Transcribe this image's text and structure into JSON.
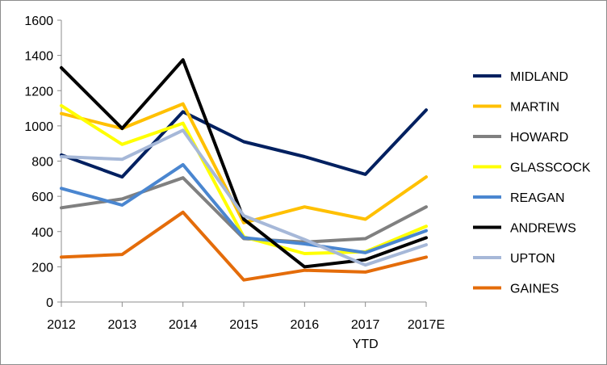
{
  "chart_data": {
    "type": "line",
    "title": "",
    "xlabel": "",
    "ylabel": "",
    "categories": [
      "2012",
      "2013",
      "2014",
      "2015",
      "2016",
      "2017",
      "2017E"
    ],
    "category_sublabels": [
      "",
      "",
      "",
      "",
      "",
      "YTD",
      ""
    ],
    "ylim": [
      0,
      1600
    ],
    "yticks": [
      0,
      200,
      400,
      600,
      800,
      1000,
      1200,
      1400,
      1600
    ],
    "grid": false,
    "legend_position": "right",
    "series": [
      {
        "name": "MIDLAND",
        "color": "#002060",
        "values": [
          835,
          710,
          1080,
          910,
          825,
          725,
          1090
        ]
      },
      {
        "name": "MARTIN",
        "color": "#FFC000",
        "values": [
          1070,
          985,
          1125,
          450,
          540,
          470,
          710
        ]
      },
      {
        "name": "HOWARD",
        "color": "#808080",
        "values": [
          535,
          585,
          705,
          360,
          340,
          360,
          540
        ]
      },
      {
        "name": "GLASSCOCK",
        "color": "#FFFF00",
        "values": [
          1115,
          895,
          1015,
          370,
          275,
          285,
          430
        ]
      },
      {
        "name": "REAGAN",
        "color": "#4A86D0",
        "values": [
          645,
          550,
          780,
          365,
          330,
          280,
          405
        ]
      },
      {
        "name": "ANDREWS",
        "color": "#000000",
        "values": [
          1330,
          985,
          1375,
          470,
          200,
          240,
          365
        ]
      },
      {
        "name": "UPTON",
        "color": "#A6B8D8",
        "values": [
          825,
          810,
          975,
          490,
          355,
          210,
          325
        ]
      },
      {
        "name": "GAINES",
        "color": "#E46C0A",
        "values": [
          255,
          270,
          510,
          125,
          180,
          170,
          255
        ]
      }
    ]
  }
}
